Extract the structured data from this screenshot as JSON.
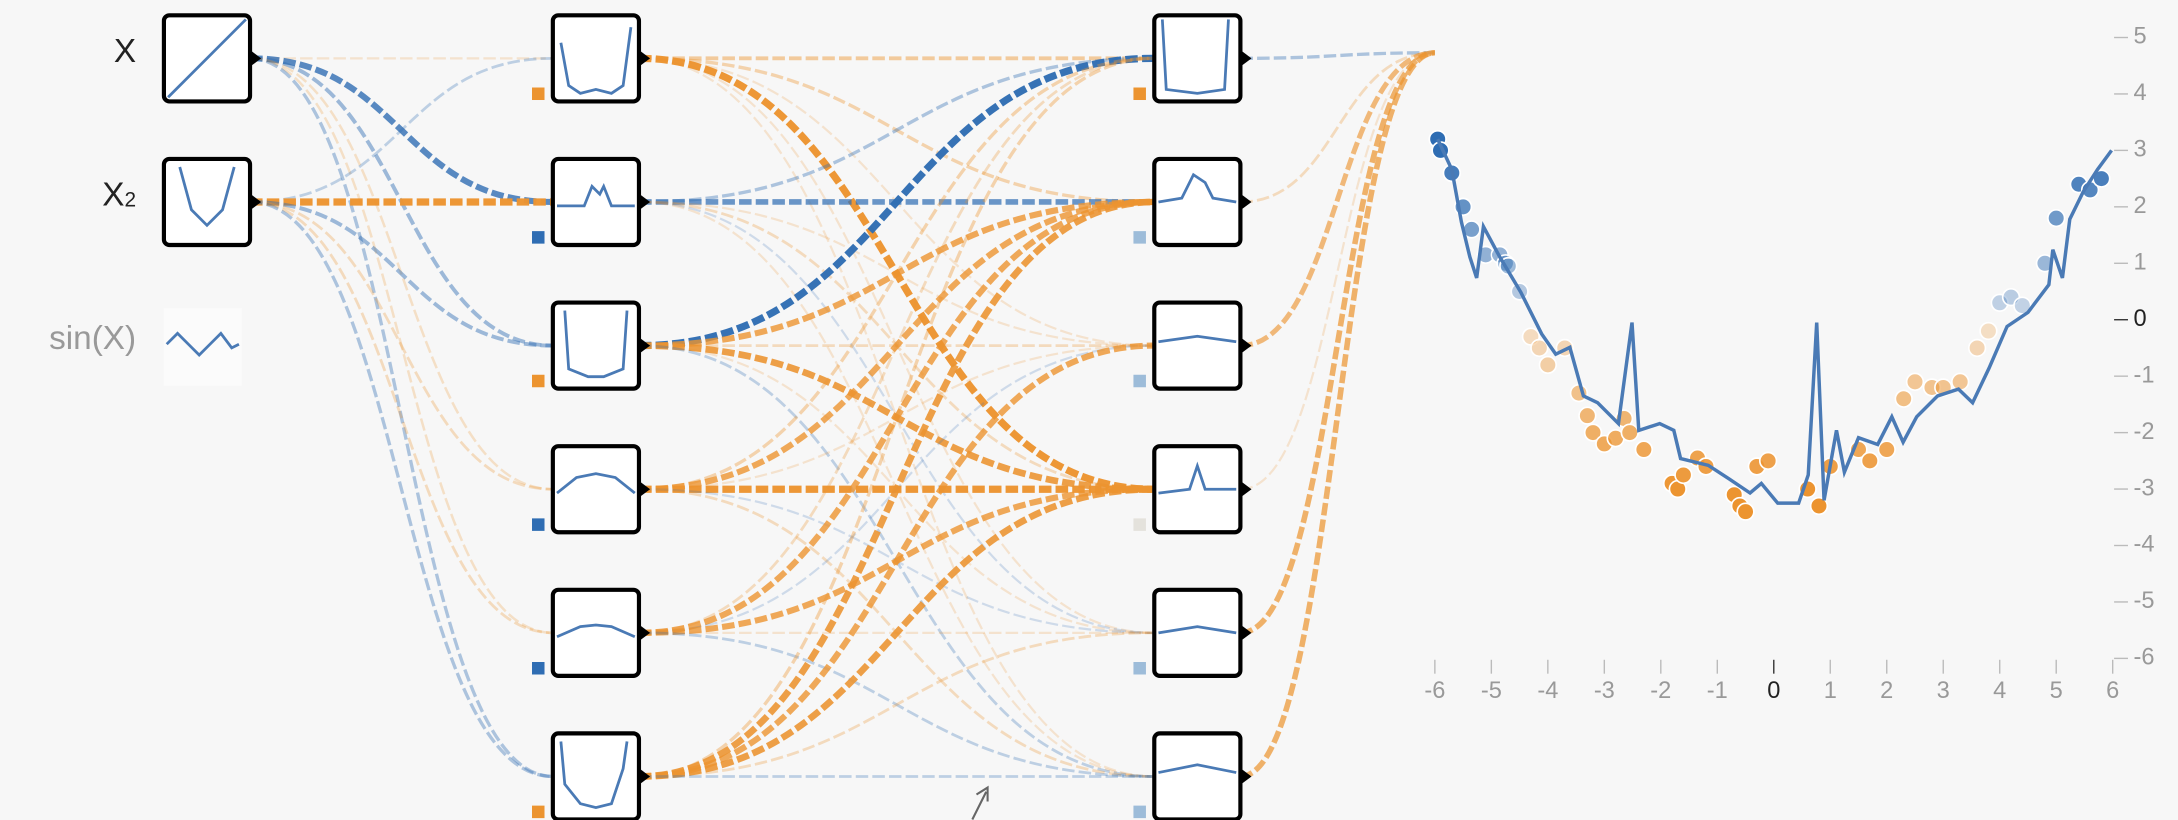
{
  "inputs": [
    {
      "label": "X",
      "active": true
    },
    {
      "label": "X",
      "sup": "2",
      "active": true
    },
    {
      "label": "sin(X)",
      "active": false
    }
  ],
  "weights": {
    "input_to_layer1": [
      [
        -0.1,
        0.8,
        0.4,
        -0.15,
        -0.15,
        0.3
      ],
      [
        0.2,
        -1.0,
        0.4,
        -0.2,
        -0.2,
        0.3
      ]
    ],
    "layer1_to_layer2": [
      [
        -0.4,
        -0.3,
        -0.1,
        -1.0,
        -0.1,
        -0.1
      ],
      [
        0.3,
        0.7,
        -0.1,
        -0.2,
        0.1,
        -0.1
      ],
      [
        1.0,
        -0.8,
        -0.2,
        -0.9,
        -0.1,
        0.2
      ],
      [
        -0.3,
        -0.8,
        -0.1,
        -1.0,
        0.1,
        -0.2
      ],
      [
        -0.2,
        -0.8,
        0.1,
        -0.8,
        -0.1,
        0.2
      ],
      [
        -0.3,
        -0.9,
        -0.8,
        -0.9,
        -0.2,
        0.2
      ]
    ],
    "layer2_to_output": [
      0.3,
      -0.2,
      -0.6,
      -0.1,
      -0.7,
      -0.7
    ]
  },
  "biases": {
    "layer1": [
      -0.5,
      0.5,
      -0.5,
      0.5,
      0.5,
      -0.5
    ],
    "layer2": [
      -0.5,
      0.2,
      0.2,
      0,
      0.2,
      0.2
    ]
  },
  "output_plot": {
    "type": "scatter",
    "xlim": [
      -6,
      6
    ],
    "ylim": [
      -6,
      5
    ],
    "xticks": [
      -6,
      -5,
      -4,
      -3,
      -2,
      -1,
      0,
      1,
      2,
      3,
      4,
      5,
      6
    ],
    "yticks": [
      5,
      4,
      3,
      2,
      1,
      0,
      -1,
      -2,
      -3,
      -4,
      -5,
      -6
    ],
    "x": [
      -5.95,
      -5.9,
      -5.7,
      -5.5,
      -5.35,
      -5.1,
      -4.85,
      -4.75,
      -4.7,
      -4.5,
      -4.3,
      -4.15,
      -4.0,
      -3.7,
      -3.45,
      -3.3,
      -3.2,
      -3.0,
      -2.8,
      -2.65,
      -2.55,
      -2.3,
      -1.8,
      -1.7,
      -1.6,
      -1.35,
      -1.2,
      -0.7,
      -0.6,
      -0.5,
      -0.3,
      -0.1,
      0.6,
      0.8,
      1.0,
      1.5,
      1.7,
      2.0,
      2.3,
      2.5,
      2.8,
      3.0,
      3.3,
      3.6,
      3.8,
      4.0,
      4.2,
      4.4,
      4.8,
      5.0,
      5.4,
      5.6,
      5.8
    ],
    "y": [
      3.2,
      3.0,
      2.6,
      2.0,
      1.6,
      1.15,
      1.15,
      1.0,
      0.95,
      0.5,
      -0.3,
      -0.5,
      -0.8,
      -0.5,
      -1.3,
      -1.7,
      -2.0,
      -2.2,
      -2.1,
      -1.75,
      -2.0,
      -2.3,
      -2.9,
      -3.0,
      -2.75,
      -2.45,
      -2.6,
      -3.1,
      -3.3,
      -3.4,
      -2.6,
      -2.5,
      -3.0,
      -3.3,
      -2.6,
      -2.3,
      -2.5,
      -2.3,
      -1.4,
      -1.1,
      -1.2,
      -1.2,
      -1.1,
      -0.5,
      -0.2,
      0.3,
      0.4,
      0.25,
      1.0,
      1.8,
      2.4,
      2.3,
      2.5
    ],
    "line": {
      "x": [
        -5.95,
        -5.7,
        -5.53,
        -5.38,
        -5.26,
        -5.14,
        -4.85,
        -4.48,
        -4.11,
        -3.86,
        -3.61,
        -3.37,
        -3.12,
        -2.75,
        -2.51,
        -2.39,
        -2.02,
        -1.77,
        -1.65,
        -1.16,
        -0.79,
        -0.42,
        -0.22,
        0.07,
        0.44,
        0.61,
        0.76,
        0.89,
        1.11,
        1.25,
        1.5,
        1.84,
        2.09,
        2.29,
        2.53,
        2.9,
        3.27,
        3.52,
        3.81,
        4.13,
        4.5,
        4.87,
        4.94,
        5.11,
        5.24,
        5.48,
        5.73,
        5.98
      ],
      "y": [
        3.2,
        2.66,
        1.73,
        1.11,
        0.74,
        1.65,
        1.11,
        0.49,
        -0.25,
        -0.61,
        -0.49,
        -1.35,
        -1.47,
        -1.84,
        -0.05,
        -1.96,
        -1.84,
        -1.96,
        -2.46,
        -2.58,
        -2.82,
        -3.07,
        -2.9,
        -3.25,
        -3.25,
        -2.75,
        -0.05,
        -3.2,
        -1.96,
        -2.7,
        -2.09,
        -2.21,
        -1.72,
        -2.17,
        -1.72,
        -1.35,
        -1.23,
        -1.47,
        -0.86,
        -0.12,
        0.13,
        0.62,
        1.24,
        0.74,
        1.78,
        2.27,
        2.66,
        3.0
      ]
    }
  }
}
